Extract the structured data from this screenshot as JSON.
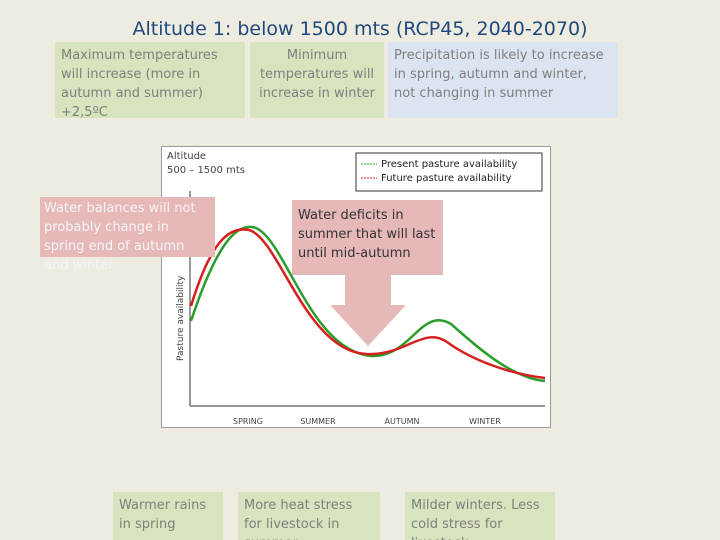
{
  "title": "Altitude 1: below 1500 mts (RCP45, 2040-2070)",
  "top_boxes": [
    "Maximum temperatures will increase (more in autumn and summer) +2,5ºC",
    "Minimum temperatures will increase in winter",
    "Precipitation is likely to increase in spring, autumn and winter, not changing in summer"
  ],
  "figure": {
    "altitude_label": "Altitude",
    "altitude_range": "500 – 1500 mts",
    "legend": [
      "Present pasture availability",
      "Future pasture availability"
    ],
    "y_label": "Pasture availability",
    "seasons": [
      "SPRING",
      "SUMMER",
      "AUTUMN",
      "WINTER"
    ]
  },
  "callouts": [
    "Water balances will not probably change in spring end of autumn and winter",
    "Water deficits in summer that will last until mid-autumn"
  ],
  "bottom_boxes": [
    "Warmer rains in spring",
    "More heat stress for livestock in summer",
    "Milder winters. Less cold stress for livestock"
  ]
}
